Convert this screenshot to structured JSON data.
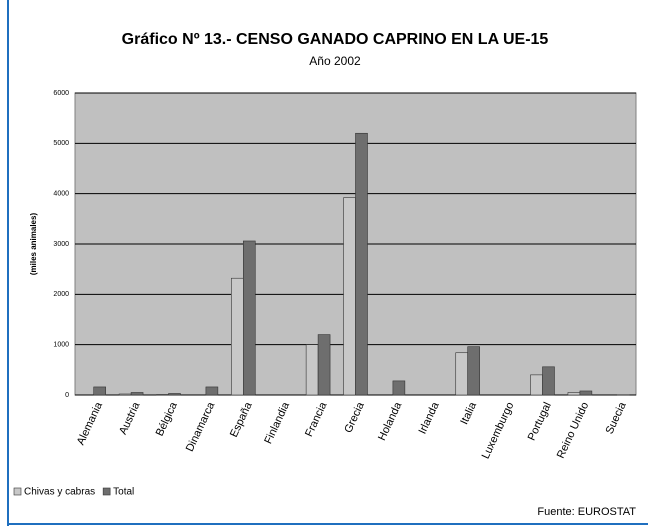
{
  "chart_data": {
    "type": "bar",
    "title": "Gráfico Nº 13.- CENSO GANADO CAPRINO EN LA UE-15",
    "subtitle": "Año 2002",
    "y_label": "(miles animales)",
    "source": "Fuente: EUROSTAT",
    "categories": [
      "Alemania",
      "Austria",
      "Bélgica",
      "Dinamarca",
      "España",
      "Finlandia",
      "Francia",
      "Grecia",
      "Holanda",
      "Irlanda",
      "Italia",
      "Luxemburgo",
      "Portugal",
      "Reino Unido",
      "Suecia"
    ],
    "series": [
      {
        "name": "Chivas y cabras",
        "color": "#c8c8c8",
        "values": [
          0,
          20,
          10,
          0,
          2320,
          0,
          1000,
          3920,
          0,
          0,
          840,
          0,
          400,
          50,
          0
        ]
      },
      {
        "name": "Total",
        "color": "#6e6e6e",
        "values": [
          160,
          50,
          30,
          160,
          3060,
          0,
          1200,
          5200,
          280,
          0,
          960,
          0,
          560,
          80,
          5
        ]
      }
    ],
    "ylim": [
      0,
      6000
    ],
    "yticks": [
      0,
      1000,
      2000,
      3000,
      4000,
      5000,
      6000
    ],
    "grid": true,
    "legend": "bottom-left"
  }
}
